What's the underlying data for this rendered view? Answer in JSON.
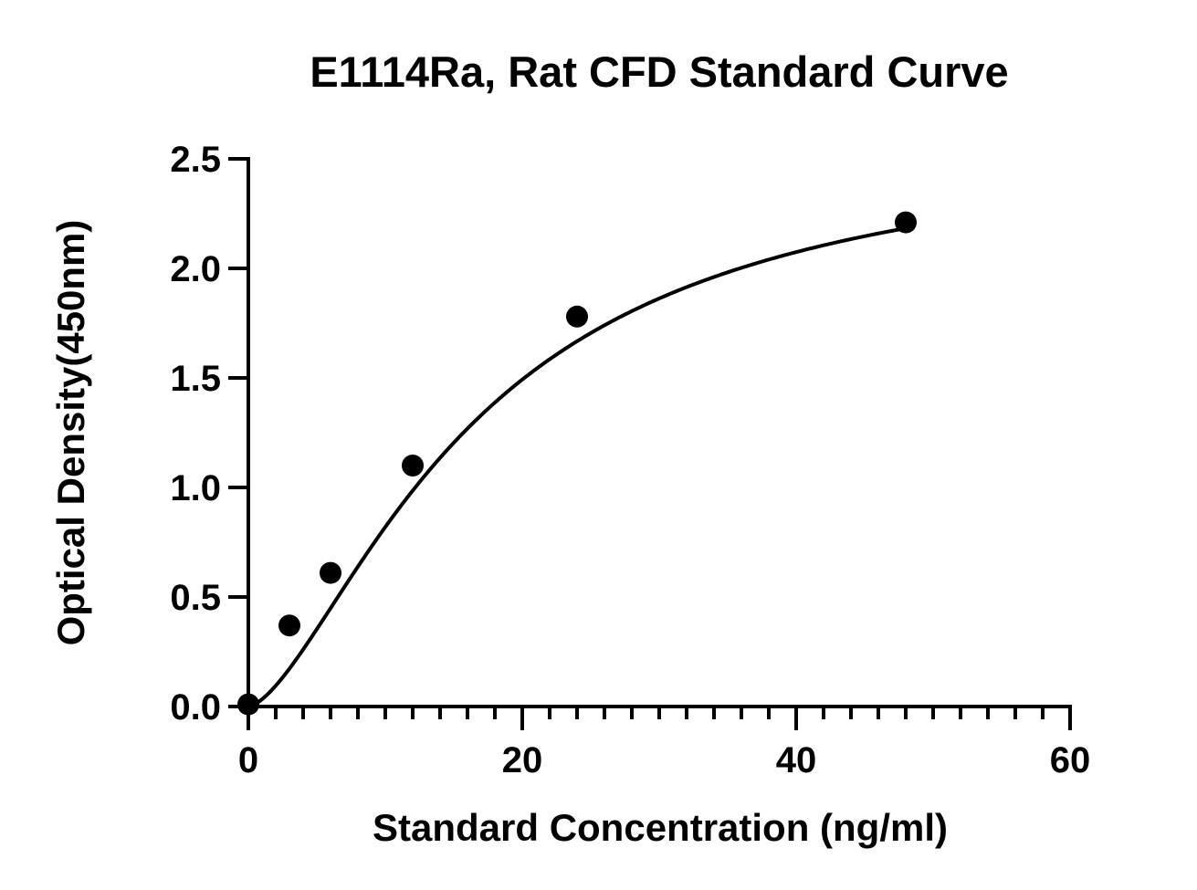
{
  "chart_data": {
    "type": "scatter",
    "title": "E1114Ra, Rat CFD Standard Curve",
    "xlabel": "Standard Concentration (ng/ml)",
    "ylabel": "Optical Density(450nm)",
    "xlim": [
      0,
      60
    ],
    "ylim": [
      0,
      2.5
    ],
    "x_ticks": [
      "0",
      "20",
      "40",
      "60"
    ],
    "y_ticks": [
      "0.0",
      "0.5",
      "1.0",
      "1.5",
      "2.0",
      "2.5"
    ],
    "x_minor_step": 2,
    "grid": false,
    "series": [
      {
        "x": [
          0,
          3,
          6,
          12,
          24,
          48
        ],
        "y": [
          0.01,
          0.37,
          0.61,
          1.1,
          1.78,
          2.21
        ],
        "marker": "circle",
        "color": "#000000",
        "fit_curve": true
      }
    ]
  }
}
